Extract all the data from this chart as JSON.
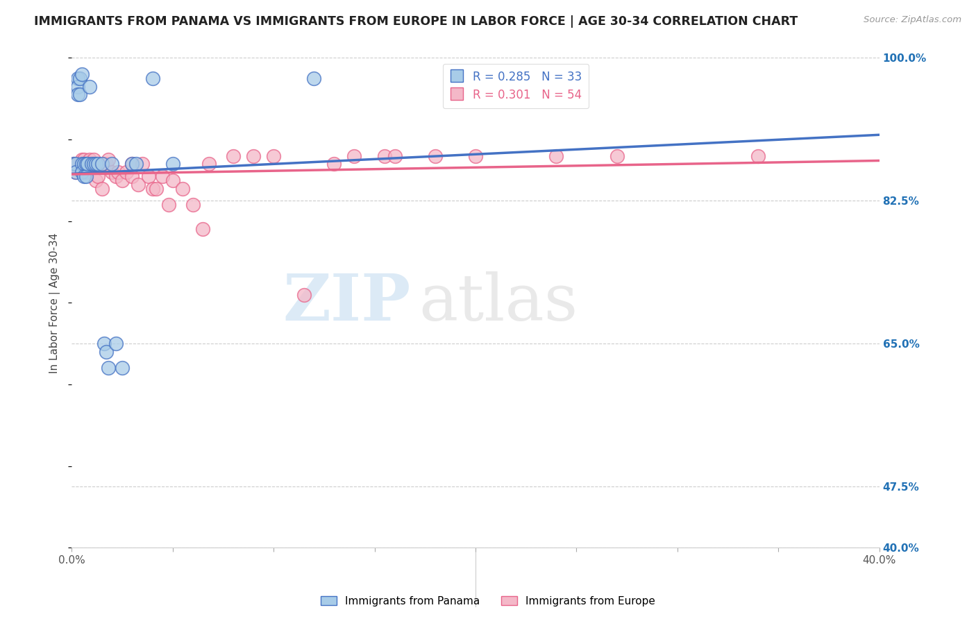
{
  "title": "IMMIGRANTS FROM PANAMA VS IMMIGRANTS FROM EUROPE IN LABOR FORCE | AGE 30-34 CORRELATION CHART",
  "source": "Source: ZipAtlas.com",
  "ylabel": "In Labor Force | Age 30-34",
  "legend_labels": [
    "Immigrants from Panama",
    "Immigrants from Europe"
  ],
  "blue_R": 0.285,
  "blue_N": 33,
  "pink_R": 0.301,
  "pink_N": 54,
  "blue_color": "#a8cce8",
  "pink_color": "#f4b8c8",
  "blue_line_color": "#4472c4",
  "pink_line_color": "#e8648a",
  "xmin": 0.0,
  "xmax": 0.4,
  "ymin": 0.4,
  "ymax": 1.0,
  "yticks": [
    0.4,
    0.475,
    0.65,
    0.825,
    1.0
  ],
  "ytick_labels": [
    "40.0%",
    "47.5%",
    "65.0%",
    "82.5%",
    "100.0%"
  ],
  "xticks": [
    0.0,
    0.05,
    0.1,
    0.15,
    0.2,
    0.25,
    0.3,
    0.35,
    0.4
  ],
  "xtick_labels": [
    "0.0%",
    "",
    "",
    "",
    "",
    "",
    "",
    "",
    "40.0%"
  ],
  "watermark_zip": "ZIP",
  "watermark_atlas": "atlas",
  "blue_x": [
    0.001,
    0.002,
    0.002,
    0.003,
    0.003,
    0.003,
    0.004,
    0.004,
    0.005,
    0.005,
    0.005,
    0.006,
    0.006,
    0.007,
    0.007,
    0.008,
    0.009,
    0.01,
    0.011,
    0.012,
    0.013,
    0.015,
    0.016,
    0.017,
    0.018,
    0.02,
    0.022,
    0.025,
    0.03,
    0.032,
    0.04,
    0.05,
    0.12
  ],
  "blue_y": [
    0.87,
    0.87,
    0.86,
    0.975,
    0.965,
    0.955,
    0.975,
    0.955,
    0.98,
    0.87,
    0.86,
    0.87,
    0.855,
    0.87,
    0.855,
    0.87,
    0.965,
    0.87,
    0.87,
    0.87,
    0.87,
    0.87,
    0.65,
    0.64,
    0.62,
    0.87,
    0.65,
    0.62,
    0.87,
    0.87,
    0.975,
    0.87,
    0.975
  ],
  "pink_x": [
    0.001,
    0.002,
    0.003,
    0.003,
    0.004,
    0.005,
    0.005,
    0.006,
    0.006,
    0.007,
    0.007,
    0.008,
    0.008,
    0.009,
    0.01,
    0.011,
    0.012,
    0.013,
    0.015,
    0.016,
    0.017,
    0.018,
    0.02,
    0.022,
    0.023,
    0.025,
    0.027,
    0.03,
    0.03,
    0.033,
    0.035,
    0.038,
    0.04,
    0.042,
    0.045,
    0.048,
    0.05,
    0.055,
    0.06,
    0.065,
    0.068,
    0.08,
    0.09,
    0.1,
    0.115,
    0.13,
    0.14,
    0.155,
    0.16,
    0.18,
    0.2,
    0.24,
    0.27,
    0.34
  ],
  "pink_y": [
    0.87,
    0.86,
    0.87,
    0.87,
    0.87,
    0.875,
    0.865,
    0.875,
    0.87,
    0.87,
    0.86,
    0.87,
    0.865,
    0.875,
    0.87,
    0.875,
    0.85,
    0.855,
    0.84,
    0.87,
    0.87,
    0.875,
    0.86,
    0.855,
    0.86,
    0.85,
    0.86,
    0.87,
    0.855,
    0.845,
    0.87,
    0.855,
    0.84,
    0.84,
    0.855,
    0.82,
    0.85,
    0.84,
    0.82,
    0.79,
    0.87,
    0.88,
    0.88,
    0.88,
    0.71,
    0.87,
    0.88,
    0.88,
    0.88,
    0.88,
    0.88,
    0.88,
    0.88,
    0.88
  ]
}
